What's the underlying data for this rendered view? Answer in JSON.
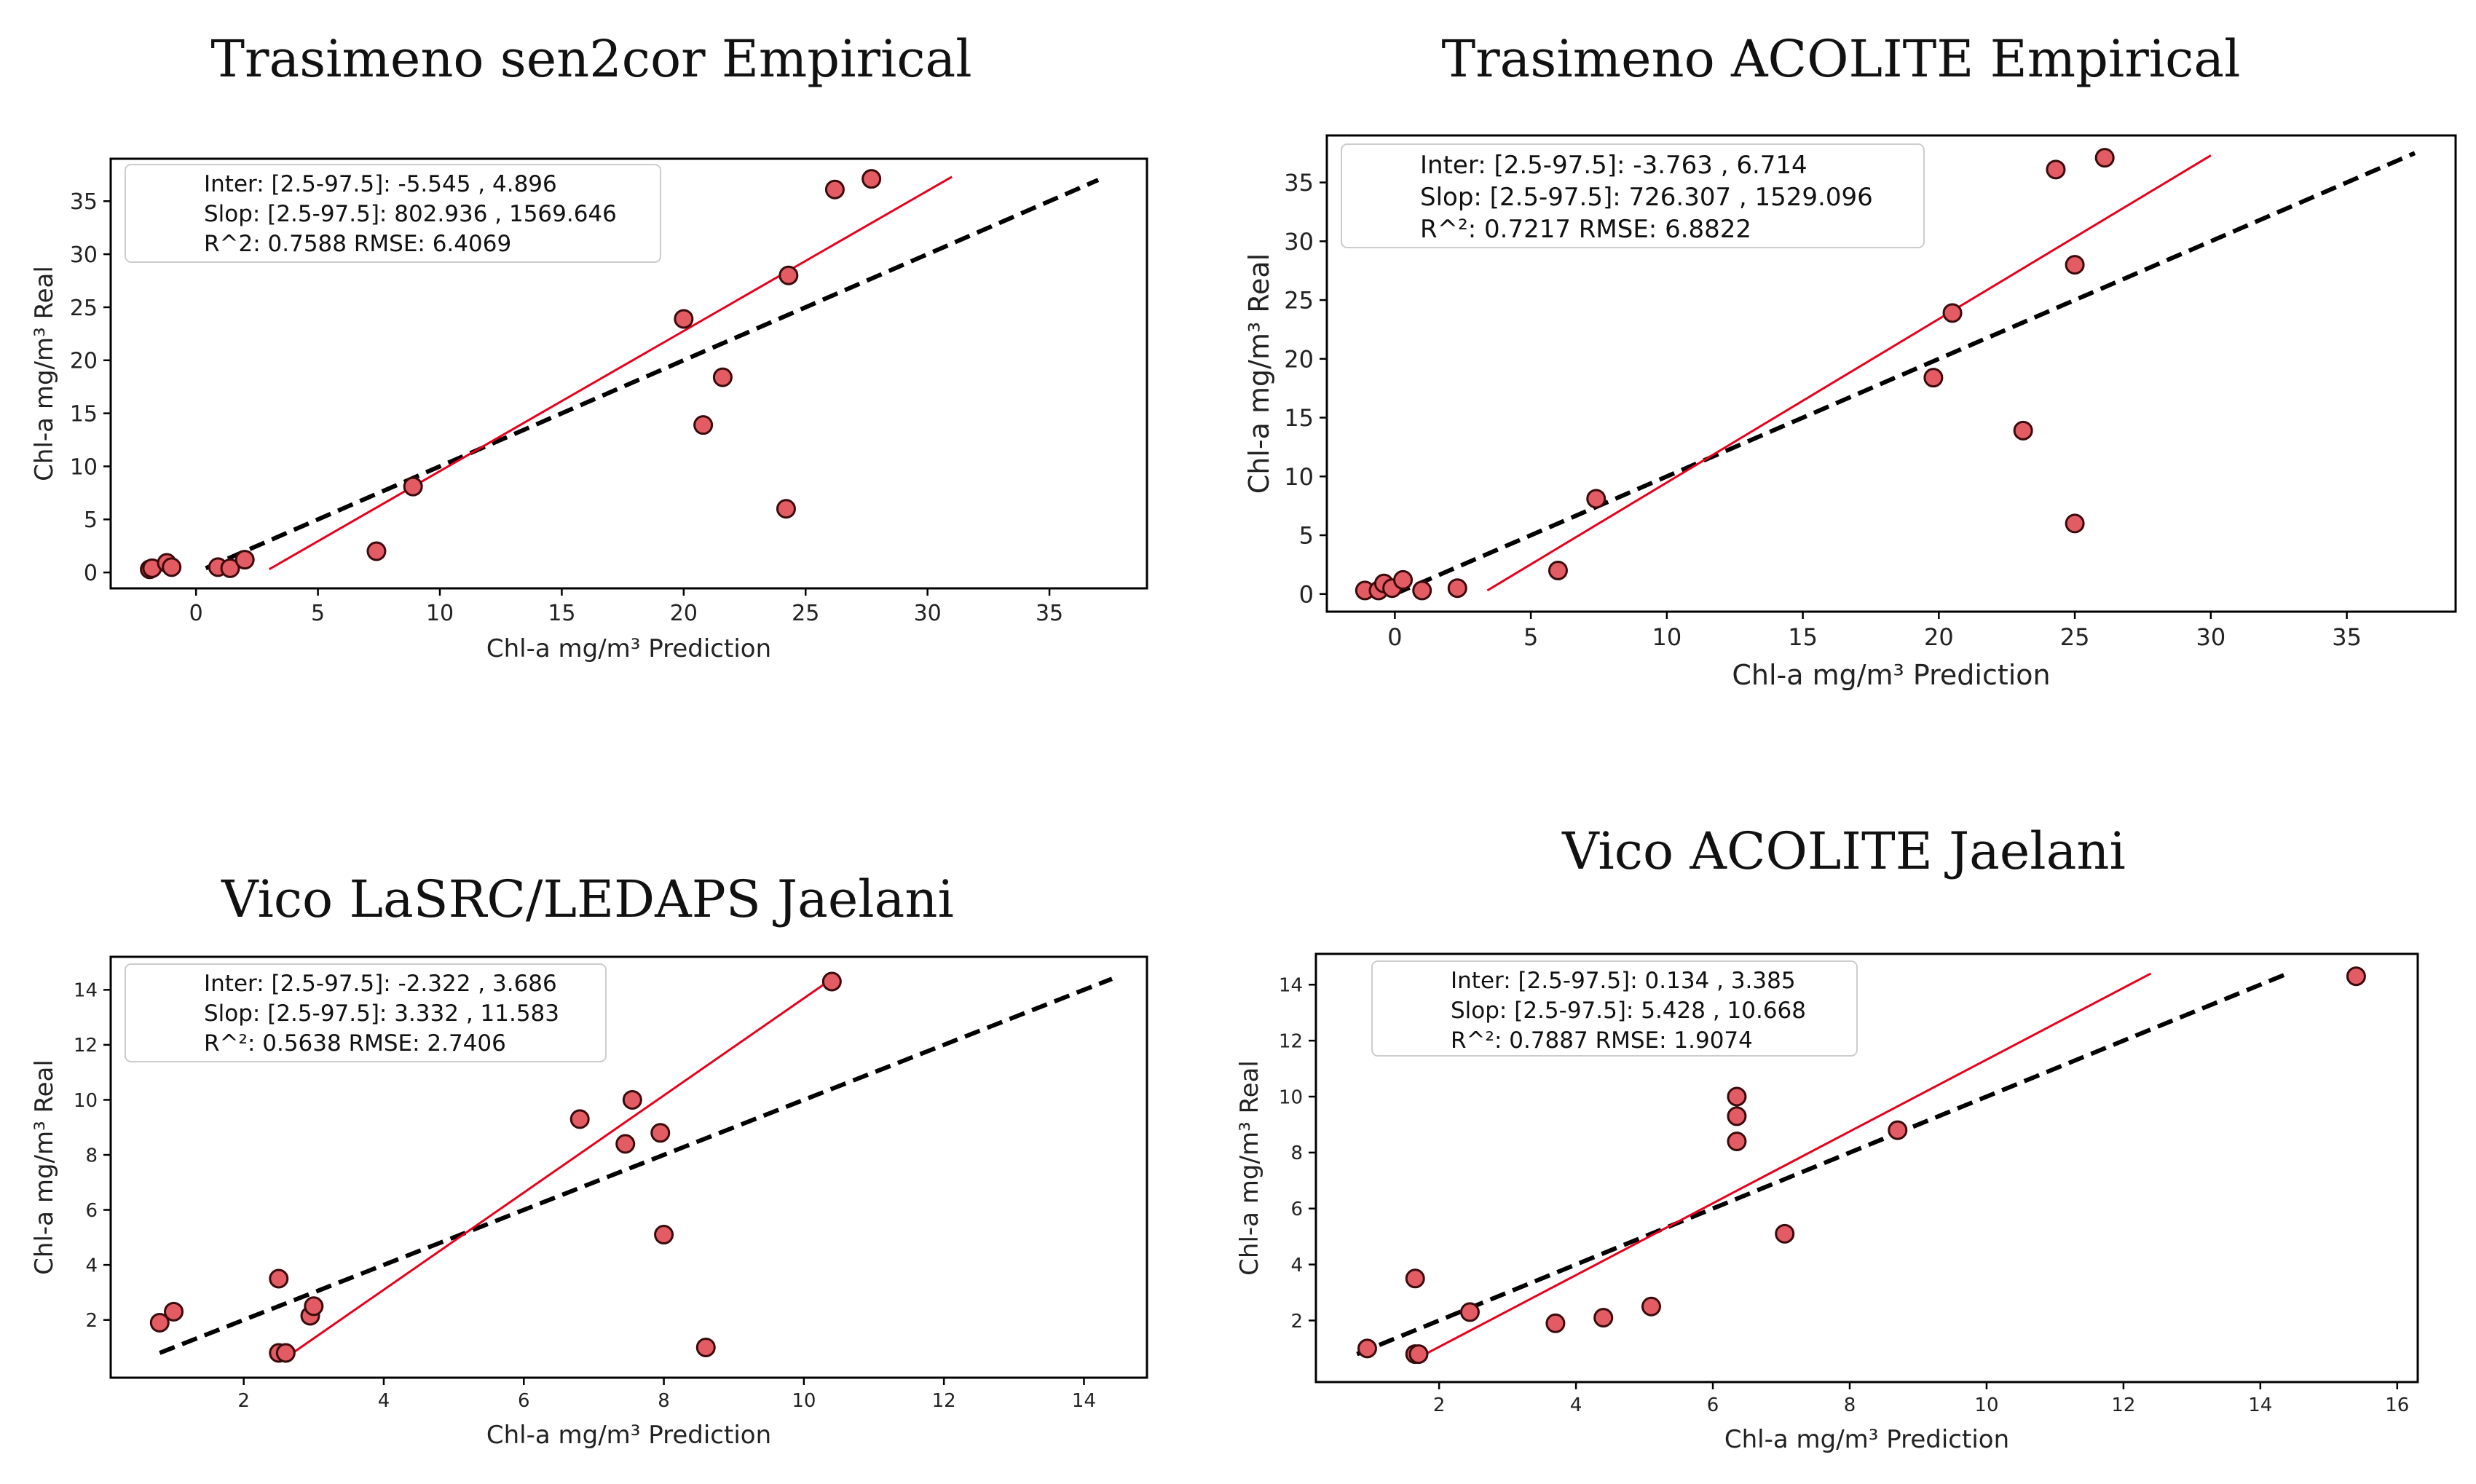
{
  "chart_data": [
    {
      "type": "scatter",
      "title": "Trasimeno sen2cor Empirical",
      "xlabel": "Chl-a mg/m³ Prediction",
      "ylabel": "Chl-a mg/m³ Real",
      "xlim": [
        -3.5,
        39
      ],
      "ylim": [
        -1.5,
        39
      ],
      "xticks": [
        0,
        5,
        10,
        15,
        20,
        25,
        30,
        35
      ],
      "yticks": [
        0,
        5,
        10,
        15,
        20,
        25,
        30,
        35
      ],
      "stats": [
        "Inter: [2.5-97.5]: -5.545 , 4.896",
        "Slop: [2.5-97.5]: 802.936 , 1569.646",
        "R^2: 0.7588 RMSE: 6.4069"
      ],
      "points": [
        [
          -1.9,
          0.3
        ],
        [
          -1.8,
          0.4
        ],
        [
          -1.2,
          0.9
        ],
        [
          -1.0,
          0.5
        ],
        [
          0.9,
          0.5
        ],
        [
          1.4,
          0.4
        ],
        [
          2.0,
          1.2
        ],
        [
          7.4,
          2.0
        ],
        [
          8.9,
          8.1
        ],
        [
          20.0,
          23.9
        ],
        [
          20.8,
          13.9
        ],
        [
          21.6,
          18.4
        ],
        [
          24.2,
          6.0
        ],
        [
          24.3,
          28.0
        ],
        [
          26.2,
          36.1
        ],
        [
          27.7,
          37.1
        ]
      ],
      "one_to_one": [
        [
          0.4,
          0.4
        ],
        [
          37.0,
          37.0
        ]
      ],
      "fit_line": [
        [
          3.0,
          0.3
        ],
        [
          31.0,
          37.3
        ]
      ]
    },
    {
      "type": "scatter",
      "title": "Trasimeno ACOLITE Empirical",
      "xlabel": "Chl-a mg/m³ Prediction",
      "ylabel": "Chl-a mg/m³ Real",
      "xlim": [
        -2.5,
        39
      ],
      "ylim": [
        -1.5,
        39
      ],
      "xticks": [
        0,
        5,
        10,
        15,
        20,
        25,
        30,
        35
      ],
      "yticks": [
        0,
        5,
        10,
        15,
        20,
        25,
        30,
        35
      ],
      "stats": [
        "Inter: [2.5-97.5]: -3.763 , 6.714",
        "Slop: [2.5-97.5]: 726.307 , 1529.096",
        "R^²: 0.7217 RMSE: 6.8822"
      ],
      "points": [
        [
          -1.1,
          0.3
        ],
        [
          -0.6,
          0.3
        ],
        [
          -0.4,
          0.9
        ],
        [
          -0.1,
          0.5
        ],
        [
          0.3,
          1.2
        ],
        [
          1.0,
          0.3
        ],
        [
          2.3,
          0.5
        ],
        [
          6.0,
          2.0
        ],
        [
          7.4,
          8.1
        ],
        [
          19.8,
          18.4
        ],
        [
          20.5,
          23.9
        ],
        [
          23.1,
          13.9
        ],
        [
          24.3,
          36.1
        ],
        [
          25.0,
          6.0
        ],
        [
          25.0,
          28.0
        ],
        [
          26.1,
          37.1
        ]
      ],
      "one_to_one": [
        [
          0.0,
          0.0
        ],
        [
          37.5,
          37.5
        ]
      ],
      "fit_line": [
        [
          3.4,
          0.3
        ],
        [
          30.0,
          37.3
        ]
      ]
    },
    {
      "type": "scatter",
      "title": "Vico LaSRC/LEDAPS Jaelani",
      "xlabel": "Chl-a mg/m³ Prediction",
      "ylabel": "Chl-a mg/m³ Real",
      "xlim": [
        0.1,
        14.9
      ],
      "ylim": [
        -0.1,
        15.2
      ],
      "xticks": [
        2,
        4,
        6,
        8,
        10,
        12,
        14
      ],
      "yticks": [
        2,
        4,
        6,
        8,
        10,
        12,
        14
      ],
      "stats": [
        "Inter: [2.5-97.5]: -2.322 , 3.686",
        "Slop: [2.5-97.5]: 3.332 , 11.583",
        "R^²: 0.5638 RMSE: 2.7406"
      ],
      "points": [
        [
          0.8,
          1.9
        ],
        [
          1.0,
          2.3
        ],
        [
          2.5,
          3.5
        ],
        [
          2.5,
          0.8
        ],
        [
          2.6,
          0.8
        ],
        [
          2.95,
          2.15
        ],
        [
          3.0,
          2.5
        ],
        [
          6.8,
          9.3
        ],
        [
          7.45,
          8.4
        ],
        [
          7.55,
          10.0
        ],
        [
          7.95,
          8.8
        ],
        [
          8.0,
          5.1
        ],
        [
          8.6,
          1.0
        ],
        [
          10.4,
          14.3
        ]
      ],
      "one_to_one": [
        [
          0.8,
          0.8
        ],
        [
          14.4,
          14.4
        ]
      ],
      "fit_line": [
        [
          2.7,
          0.8
        ],
        [
          10.4,
          14.4
        ]
      ]
    },
    {
      "type": "scatter",
      "title": "Vico ACOLITE Jaelani",
      "xlabel": "Chl-a mg/m³ Prediction",
      "ylabel": "Chl-a mg/m³ Real",
      "xlim": [
        0.2,
        16.3
      ],
      "ylim": [
        -0.2,
        15.1
      ],
      "xticks": [
        2,
        4,
        6,
        8,
        10,
        12,
        14,
        16
      ],
      "yticks": [
        2,
        4,
        6,
        8,
        10,
        12,
        14
      ],
      "stats": [
        "Inter: [2.5-97.5]: 0.134 , 3.385",
        "Slop: [2.5-97.5]: 5.428 , 10.668",
        "R^²: 0.7887 RMSE: 1.9074"
      ],
      "points": [
        [
          0.95,
          1.0
        ],
        [
          1.65,
          3.5
        ],
        [
          1.65,
          0.8
        ],
        [
          1.7,
          0.8
        ],
        [
          2.45,
          2.3
        ],
        [
          3.7,
          1.9
        ],
        [
          4.4,
          2.1
        ],
        [
          5.1,
          2.5
        ],
        [
          6.35,
          10.0
        ],
        [
          6.35,
          9.3
        ],
        [
          6.35,
          8.4
        ],
        [
          7.05,
          5.1
        ],
        [
          8.7,
          8.8
        ],
        [
          15.4,
          14.3
        ]
      ],
      "one_to_one": [
        [
          0.8,
          0.8
        ],
        [
          14.4,
          14.4
        ]
      ],
      "fit_line": [
        [
          1.8,
          0.8
        ],
        [
          12.4,
          14.4
        ]
      ]
    }
  ]
}
